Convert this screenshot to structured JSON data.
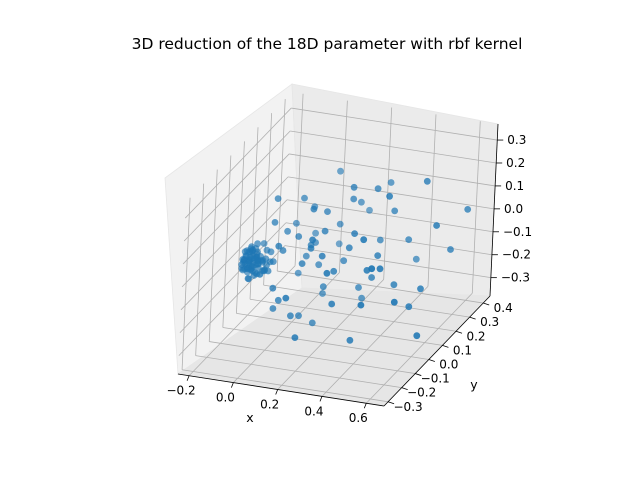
{
  "chart_data": {
    "type": "scatter",
    "projection": "3d",
    "title": "3D reduction of the 18D parameter with rbf kernel",
    "xlabel": "x",
    "ylabel": "y",
    "zlabel": "",
    "xlim": [
      -0.25,
      0.68
    ],
    "ylim": [
      -0.33,
      0.45
    ],
    "zlim": [
      -0.38,
      0.37
    ],
    "x_ticks": [
      -0.2,
      0.0,
      0.2,
      0.4,
      0.6
    ],
    "x_tick_labels": [
      "−0.2",
      "0.0",
      "0.2",
      "0.4",
      "0.6"
    ],
    "y_ticks": [
      -0.3,
      -0.2,
      -0.1,
      0.0,
      0.1,
      0.2,
      0.3,
      0.4
    ],
    "y_tick_labels": [
      "−0.3",
      "−0.2",
      "−0.1",
      "0.0",
      "0.1",
      "0.2",
      "0.3",
      "0.4"
    ],
    "z_ticks": [
      -0.3,
      -0.2,
      -0.1,
      0.0,
      0.1,
      0.2,
      0.3
    ],
    "z_tick_labels": [
      "−0.3",
      "−0.2",
      "−0.1",
      "0.0",
      "0.1",
      "0.2",
      "0.3"
    ],
    "grid": true,
    "legend": "none",
    "series_color": "#1f77b4",
    "points": [
      [
        -0.12,
        -0.02,
        -0.08
      ],
      [
        -0.13,
        -0.03,
        -0.05
      ],
      [
        -0.14,
        -0.01,
        -0.07
      ],
      [
        -0.12,
        -0.04,
        -0.03
      ],
      [
        -0.15,
        -0.02,
        -0.04
      ],
      [
        -0.11,
        -0.03,
        -0.06
      ],
      [
        -0.13,
        0.0,
        -0.05
      ],
      [
        -0.12,
        -0.05,
        -0.07
      ],
      [
        -0.1,
        -0.02,
        -0.04
      ],
      [
        -0.14,
        -0.04,
        -0.06
      ],
      [
        -0.13,
        -0.02,
        -0.02
      ],
      [
        -0.11,
        -0.01,
        -0.08
      ],
      [
        -0.12,
        -0.03,
        -0.09
      ],
      [
        -0.15,
        -0.03,
        -0.05
      ],
      [
        -0.1,
        -0.04,
        -0.03
      ],
      [
        -0.09,
        -0.03,
        -0.06
      ],
      [
        -0.14,
        0.01,
        -0.04
      ],
      [
        -0.13,
        -0.05,
        -0.02
      ],
      [
        -0.16,
        -0.02,
        -0.07
      ],
      [
        -0.11,
        0.0,
        -0.03
      ],
      [
        -0.12,
        -0.02,
        -0.01
      ],
      [
        -0.1,
        -0.05,
        -0.08
      ],
      [
        -0.13,
        -0.01,
        -0.1
      ],
      [
        -0.15,
        -0.04,
        -0.09
      ],
      [
        -0.08,
        -0.02,
        -0.05
      ],
      [
        -0.11,
        -0.06,
        -0.04
      ],
      [
        -0.14,
        -0.03,
        -0.01
      ],
      [
        -0.12,
        0.01,
        -0.06
      ],
      [
        -0.09,
        -0.05,
        -0.03
      ],
      [
        -0.16,
        -0.01,
        -0.03
      ],
      [
        -0.13,
        -0.04,
        -0.08
      ],
      [
        -0.1,
        -0.01,
        -0.06
      ],
      [
        -0.12,
        -0.06,
        -0.05
      ],
      [
        -0.14,
        -0.02,
        -0.11
      ],
      [
        -0.11,
        -0.04,
        0.0
      ],
      [
        -0.08,
        -0.04,
        -0.07
      ],
      [
        -0.13,
        0.02,
        -0.03
      ],
      [
        -0.15,
        -0.05,
        -0.06
      ],
      [
        -0.1,
        -0.03,
        -0.1
      ],
      [
        -0.12,
        -0.03,
        0.01
      ],
      [
        -0.09,
        -0.01,
        -0.04
      ],
      [
        -0.14,
        -0.05,
        -0.04
      ],
      [
        -0.11,
        -0.02,
        -0.12
      ],
      [
        -0.13,
        -0.06,
        -0.07
      ],
      [
        -0.07,
        -0.03,
        -0.05
      ],
      [
        -0.16,
        -0.03,
        -0.09
      ],
      [
        -0.12,
        0.02,
        -0.08
      ],
      [
        -0.1,
        -0.06,
        -0.02
      ],
      [
        -0.06,
        -0.02,
        -0.04
      ],
      [
        -0.08,
        -0.05,
        -0.09
      ],
      [
        -0.14,
        0.0,
        -0.02
      ],
      [
        -0.11,
        -0.07,
        -0.06
      ],
      [
        -0.05,
        -0.03,
        -0.06
      ],
      [
        -0.09,
        0.01,
        -0.07
      ],
      [
        -0.13,
        -0.03,
        -0.13
      ],
      [
        -0.1,
        -0.02,
        0.02
      ],
      [
        -0.07,
        -0.06,
        -0.04
      ],
      [
        -0.15,
        0.01,
        -0.08
      ],
      [
        -0.12,
        -0.05,
        0.0
      ],
      [
        -0.06,
        -0.04,
        -0.08
      ],
      [
        -0.04,
        -0.02,
        -0.05
      ],
      [
        -0.08,
        0.02,
        -0.03
      ],
      [
        -0.11,
        -0.06,
        -0.11
      ],
      [
        -0.14,
        -0.06,
        -0.03
      ],
      [
        -0.03,
        -0.05,
        -0.07
      ],
      [
        -0.05,
        0.0,
        -0.02
      ],
      [
        -0.09,
        -0.07,
        -0.05
      ],
      [
        -0.13,
        0.03,
        -0.06
      ],
      [
        -0.02,
        -0.03,
        -0.04
      ],
      [
        -0.07,
        -0.01,
        -0.1
      ],
      [
        -0.1,
        0.03,
        -0.01
      ],
      [
        -0.04,
        -0.06,
        -0.06
      ],
      [
        0.05,
        -0.08,
        0.05
      ],
      [
        0.1,
        -0.05,
        0.1
      ],
      [
        0.02,
        0.0,
        0.08
      ],
      [
        0.15,
        -0.1,
        0.02
      ],
      [
        0.08,
        0.05,
        -0.05
      ],
      [
        0.2,
        -0.02,
        0.12
      ],
      [
        0.0,
        0.1,
        0.05
      ],
      [
        0.12,
        0.08,
        -0.1
      ],
      [
        0.25,
        -0.12,
        0.08
      ],
      [
        0.18,
        0.02,
        -0.15
      ],
      [
        0.05,
        0.15,
        0.1
      ],
      [
        0.3,
        0.0,
        0.05
      ],
      [
        0.22,
        0.1,
        -0.08
      ],
      [
        0.08,
        -0.15,
        -0.12
      ],
      [
        0.35,
        -0.05,
        0.15
      ],
      [
        0.15,
        0.18,
        0.02
      ],
      [
        0.28,
        0.12,
        -0.2
      ],
      [
        0.03,
        0.2,
        -0.05
      ],
      [
        0.4,
        0.05,
        0.0
      ],
      [
        0.1,
        -0.2,
        0.15
      ],
      [
        0.32,
        -0.15,
        -0.1
      ],
      [
        0.2,
        0.25,
        0.08
      ],
      [
        0.45,
        0.1,
        -0.15
      ],
      [
        0.06,
        0.05,
        0.2
      ],
      [
        0.25,
        -0.2,
        0.2
      ],
      [
        0.38,
        0.2,
        0.1
      ],
      [
        0.12,
        0.12,
        -0.25
      ],
      [
        0.5,
        -0.1,
        0.05
      ],
      [
        0.18,
        -0.08,
        0.25
      ],
      [
        0.42,
        0.25,
        -0.05
      ],
      [
        0.55,
        0.05,
        -0.2
      ],
      [
        0.02,
        -0.1,
        0.18
      ],
      [
        0.3,
        0.3,
        0.15
      ],
      [
        0.48,
        -0.2,
        -0.05
      ],
      [
        0.6,
        0.15,
        0.1
      ],
      [
        0.22,
        -0.25,
        -0.2
      ],
      [
        0.1,
        0.25,
        0.2
      ],
      [
        0.35,
        -0.25,
        0.1
      ],
      [
        0.58,
        0.3,
        -0.1
      ],
      [
        0.15,
        0.0,
        -0.3
      ],
      [
        0.45,
        -0.15,
        0.2
      ],
      [
        0.05,
        -0.25,
        0.05
      ],
      [
        0.65,
        -0.05,
        -0.25
      ],
      [
        0.28,
        0.05,
        0.28
      ],
      [
        0.08,
        0.3,
        -0.15
      ],
      [
        0.52,
        0.2,
        0.25
      ],
      [
        0.38,
        -0.1,
        -0.28
      ],
      [
        0.0,
        -0.05,
        0.25
      ],
      [
        0.62,
        0.35,
        0.05
      ],
      [
        0.2,
        -0.3,
        0.0
      ],
      [
        0.4,
        0.35,
        -0.2
      ],
      [
        0.12,
        -0.12,
        -0.2
      ],
      [
        0.55,
        -0.25,
        0.15
      ],
      [
        0.25,
        0.2,
        -0.3
      ],
      [
        0.03,
        0.08,
        -0.15
      ],
      [
        0.33,
        0.15,
        0.22
      ],
      [
        0.07,
        -0.18,
        -0.05
      ],
      [
        0.18,
        0.35,
        -0.02
      ],
      [
        0.47,
        0.0,
        0.3
      ],
      [
        0.6,
        -0.15,
        -0.05
      ],
      [
        0.14,
        -0.02,
        0.05
      ],
      [
        0.27,
        -0.06,
        -0.02
      ],
      [
        0.09,
        0.1,
        -0.02
      ],
      [
        0.21,
        -0.14,
        0.12
      ],
      [
        0.36,
        0.08,
        -0.12
      ],
      [
        0.04,
        -0.12,
        -0.18
      ],
      [
        0.16,
        0.06,
        0.15
      ],
      [
        0.43,
        -0.08,
        0.02
      ],
      [
        0.11,
        -0.04,
        -0.25
      ],
      [
        0.31,
        0.22,
        -0.05
      ],
      [
        0.24,
        0.12,
        0.18
      ],
      [
        0.57,
        0.1,
        -0.15
      ]
    ]
  }
}
